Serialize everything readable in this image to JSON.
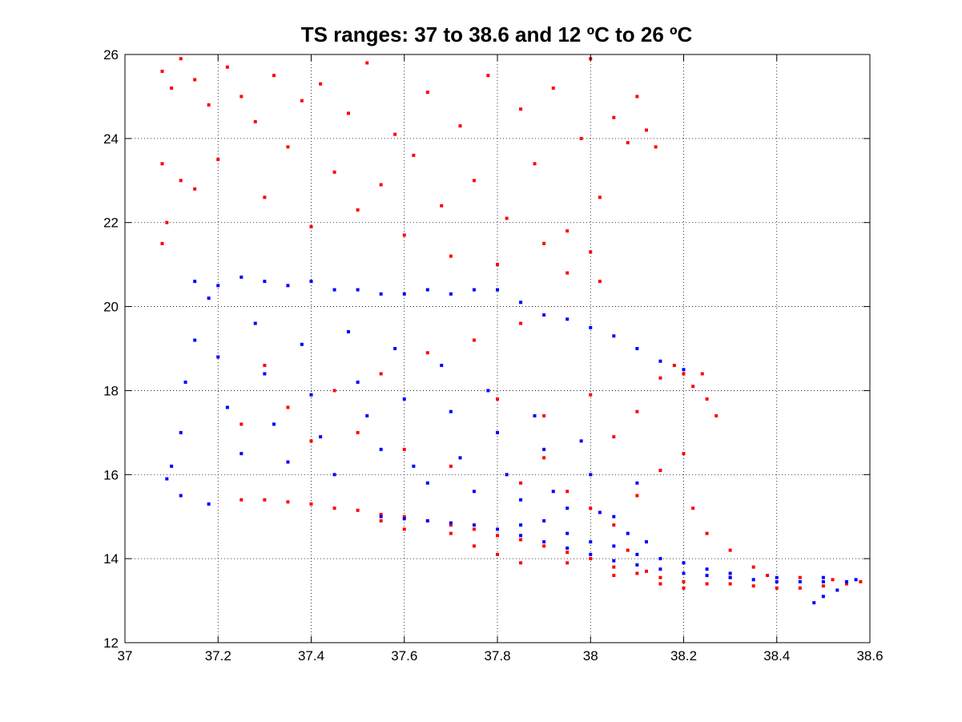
{
  "chart_data": {
    "type": "scatter",
    "title": "TS ranges: 37 to 38.6 and 12 ºC to 26 ºC",
    "xlabel": "",
    "ylabel": "",
    "xlim": [
      37,
      38.6
    ],
    "ylim": [
      12,
      26
    ],
    "xticks": [
      37,
      37.2,
      37.4,
      37.6,
      37.8,
      38,
      38.2,
      38.4,
      38.6
    ],
    "yticks": [
      12,
      14,
      16,
      18,
      20,
      22,
      24,
      26
    ],
    "xtick_labels": [
      "37",
      "37.2",
      "37.4",
      "37.6",
      "37.8",
      "38",
      "38.2",
      "38.4",
      "38.6"
    ],
    "ytick_labels": [
      "12",
      "14",
      "16",
      "18",
      "20",
      "22",
      "24",
      "26"
    ],
    "grid": true,
    "legend": "none",
    "series": [
      {
        "color": "#ff0000",
        "marker": "dot",
        "points": [
          [
            37.08,
            25.6
          ],
          [
            37.1,
            25.2
          ],
          [
            37.12,
            25.9
          ],
          [
            37.15,
            25.4
          ],
          [
            37.18,
            24.8
          ],
          [
            37.22,
            25.7
          ],
          [
            37.25,
            25.0
          ],
          [
            37.28,
            24.4
          ],
          [
            37.32,
            25.5
          ],
          [
            37.35,
            23.8
          ],
          [
            37.38,
            24.9
          ],
          [
            37.42,
            25.3
          ],
          [
            37.45,
            23.2
          ],
          [
            37.48,
            24.6
          ],
          [
            37.52,
            25.8
          ],
          [
            37.55,
            22.9
          ],
          [
            37.58,
            24.1
          ],
          [
            37.62,
            23.6
          ],
          [
            37.65,
            25.1
          ],
          [
            37.68,
            22.4
          ],
          [
            37.72,
            24.3
          ],
          [
            37.75,
            23.0
          ],
          [
            37.78,
            25.5
          ],
          [
            37.82,
            22.1
          ],
          [
            37.85,
            24.7
          ],
          [
            37.88,
            23.4
          ],
          [
            37.92,
            25.2
          ],
          [
            37.95,
            21.8
          ],
          [
            37.98,
            24.0
          ],
          [
            38.0,
            25.9
          ],
          [
            38.02,
            22.6
          ],
          [
            38.05,
            24.5
          ],
          [
            38.08,
            23.9
          ],
          [
            38.1,
            25.0
          ],
          [
            38.12,
            24.2
          ],
          [
            38.14,
            23.8
          ],
          [
            37.08,
            23.4
          ],
          [
            37.09,
            22.0
          ],
          [
            37.08,
            21.5
          ],
          [
            37.12,
            23.0
          ],
          [
            37.15,
            22.8
          ],
          [
            37.2,
            23.5
          ],
          [
            37.3,
            22.6
          ],
          [
            37.4,
            21.9
          ],
          [
            37.5,
            22.3
          ],
          [
            37.6,
            21.7
          ],
          [
            37.7,
            21.2
          ],
          [
            37.8,
            21.0
          ],
          [
            37.9,
            21.5
          ],
          [
            37.95,
            20.8
          ],
          [
            38.0,
            21.3
          ],
          [
            38.02,
            20.6
          ],
          [
            37.85,
            19.6
          ],
          [
            37.75,
            19.2
          ],
          [
            37.65,
            18.9
          ],
          [
            37.55,
            18.4
          ],
          [
            37.45,
            18.0
          ],
          [
            37.35,
            17.6
          ],
          [
            37.3,
            18.6
          ],
          [
            37.25,
            17.2
          ],
          [
            37.4,
            16.8
          ],
          [
            37.5,
            17.0
          ],
          [
            37.6,
            16.6
          ],
          [
            37.7,
            16.2
          ],
          [
            37.8,
            17.8
          ],
          [
            37.9,
            17.4
          ],
          [
            38.0,
            17.9
          ],
          [
            38.05,
            16.9
          ],
          [
            38.1,
            17.5
          ],
          [
            38.15,
            18.3
          ],
          [
            38.2,
            18.4
          ],
          [
            38.22,
            18.1
          ],
          [
            38.25,
            17.8
          ],
          [
            38.24,
            18.4
          ],
          [
            38.18,
            18.6
          ],
          [
            38.27,
            17.4
          ],
          [
            38.2,
            16.5
          ],
          [
            38.15,
            16.1
          ],
          [
            38.1,
            15.5
          ],
          [
            38.22,
            15.2
          ],
          [
            38.25,
            14.6
          ],
          [
            38.3,
            14.2
          ],
          [
            38.35,
            13.8
          ],
          [
            38.05,
            14.8
          ],
          [
            37.95,
            15.6
          ],
          [
            37.85,
            15.8
          ],
          [
            37.9,
            16.4
          ],
          [
            38.0,
            15.2
          ],
          [
            38.08,
            14.2
          ],
          [
            38.12,
            13.7
          ],
          [
            37.25,
            15.4
          ],
          [
            37.3,
            15.4
          ],
          [
            37.35,
            15.35
          ],
          [
            37.4,
            15.3
          ],
          [
            37.45,
            15.2
          ],
          [
            37.5,
            15.15
          ],
          [
            37.55,
            15.05
          ],
          [
            37.6,
            15.0
          ],
          [
            37.65,
            14.9
          ],
          [
            37.7,
            14.8
          ],
          [
            37.75,
            14.7
          ],
          [
            37.8,
            14.55
          ],
          [
            37.85,
            14.45
          ],
          [
            37.9,
            14.3
          ],
          [
            37.95,
            14.15
          ],
          [
            38.0,
            14.0
          ],
          [
            38.05,
            13.8
          ],
          [
            38.1,
            13.65
          ],
          [
            38.15,
            13.55
          ],
          [
            38.2,
            13.45
          ],
          [
            38.25,
            13.4
          ],
          [
            38.3,
            13.4
          ],
          [
            38.35,
            13.35
          ],
          [
            38.4,
            13.3
          ],
          [
            38.45,
            13.3
          ],
          [
            38.5,
            13.35
          ],
          [
            38.55,
            13.4
          ],
          [
            38.58,
            13.45
          ],
          [
            37.55,
            14.9
          ],
          [
            37.6,
            14.7
          ],
          [
            37.7,
            14.6
          ],
          [
            37.75,
            14.3
          ],
          [
            37.8,
            14.1
          ],
          [
            37.85,
            13.9
          ],
          [
            37.95,
            13.9
          ],
          [
            38.05,
            13.6
          ],
          [
            38.15,
            13.4
          ],
          [
            38.2,
            13.3
          ],
          [
            38.3,
            13.55
          ],
          [
            38.38,
            13.6
          ],
          [
            38.45,
            13.55
          ],
          [
            38.52,
            13.5
          ]
        ]
      },
      {
        "color": "#0000ff",
        "marker": "dot",
        "points": [
          [
            37.15,
            20.6
          ],
          [
            37.2,
            20.5
          ],
          [
            37.25,
            20.7
          ],
          [
            37.3,
            20.6
          ],
          [
            37.35,
            20.5
          ],
          [
            37.4,
            20.6
          ],
          [
            37.45,
            20.4
          ],
          [
            37.5,
            20.4
          ],
          [
            37.55,
            20.3
          ],
          [
            37.6,
            20.3
          ],
          [
            37.65,
            20.4
          ],
          [
            37.7,
            20.3
          ],
          [
            37.75,
            20.4
          ],
          [
            37.8,
            20.4
          ],
          [
            37.85,
            20.1
          ],
          [
            37.9,
            19.8
          ],
          [
            37.95,
            19.7
          ],
          [
            38.0,
            19.5
          ],
          [
            38.05,
            19.3
          ],
          [
            38.1,
            19.0
          ],
          [
            38.15,
            18.7
          ],
          [
            38.2,
            18.5
          ],
          [
            37.1,
            16.2
          ],
          [
            37.12,
            17.0
          ],
          [
            37.13,
            18.2
          ],
          [
            37.15,
            19.2
          ],
          [
            37.18,
            20.2
          ],
          [
            37.2,
            18.8
          ],
          [
            37.22,
            17.6
          ],
          [
            37.25,
            16.5
          ],
          [
            37.28,
            19.6
          ],
          [
            37.3,
            18.4
          ],
          [
            37.32,
            17.2
          ],
          [
            37.35,
            16.3
          ],
          [
            37.38,
            19.1
          ],
          [
            37.4,
            17.9
          ],
          [
            37.42,
            16.9
          ],
          [
            37.45,
            16.0
          ],
          [
            37.48,
            19.4
          ],
          [
            37.5,
            18.2
          ],
          [
            37.52,
            17.4
          ],
          [
            37.55,
            16.6
          ],
          [
            37.58,
            19.0
          ],
          [
            37.6,
            17.8
          ],
          [
            37.62,
            16.2
          ],
          [
            37.65,
            15.8
          ],
          [
            37.68,
            18.6
          ],
          [
            37.7,
            17.5
          ],
          [
            37.72,
            16.4
          ],
          [
            37.75,
            15.6
          ],
          [
            37.78,
            18.0
          ],
          [
            37.8,
            17.0
          ],
          [
            37.82,
            16.0
          ],
          [
            37.85,
            15.4
          ],
          [
            37.88,
            17.4
          ],
          [
            37.9,
            16.6
          ],
          [
            37.92,
            15.6
          ],
          [
            37.95,
            15.2
          ],
          [
            37.98,
            16.8
          ],
          [
            38.0,
            16.0
          ],
          [
            38.02,
            15.1
          ],
          [
            38.05,
            15.0
          ],
          [
            38.08,
            14.6
          ],
          [
            38.1,
            15.8
          ],
          [
            38.12,
            14.4
          ],
          [
            37.09,
            15.9
          ],
          [
            37.12,
            15.5
          ],
          [
            37.18,
            15.3
          ],
          [
            37.55,
            15.0
          ],
          [
            37.6,
            14.95
          ],
          [
            37.65,
            14.9
          ],
          [
            37.7,
            14.85
          ],
          [
            37.75,
            14.8
          ],
          [
            37.8,
            14.7
          ],
          [
            37.85,
            14.55
          ],
          [
            37.9,
            14.4
          ],
          [
            37.95,
            14.25
          ],
          [
            38.0,
            14.1
          ],
          [
            38.05,
            13.95
          ],
          [
            38.1,
            13.85
          ],
          [
            38.15,
            13.75
          ],
          [
            38.2,
            13.65
          ],
          [
            38.25,
            13.6
          ],
          [
            38.3,
            13.55
          ],
          [
            38.35,
            13.5
          ],
          [
            38.4,
            13.45
          ],
          [
            38.45,
            13.45
          ],
          [
            38.5,
            13.45
          ],
          [
            38.55,
            13.45
          ],
          [
            38.57,
            13.5
          ],
          [
            38.53,
            13.25
          ],
          [
            38.5,
            13.1
          ],
          [
            38.48,
            12.95
          ],
          [
            37.85,
            14.8
          ],
          [
            37.9,
            14.9
          ],
          [
            37.95,
            14.6
          ],
          [
            38.0,
            14.4
          ],
          [
            38.05,
            14.3
          ],
          [
            38.1,
            14.1
          ],
          [
            38.15,
            14.0
          ],
          [
            38.2,
            13.9
          ],
          [
            38.25,
            13.75
          ],
          [
            38.3,
            13.65
          ],
          [
            38.4,
            13.55
          ],
          [
            38.5,
            13.55
          ]
        ]
      }
    ]
  }
}
